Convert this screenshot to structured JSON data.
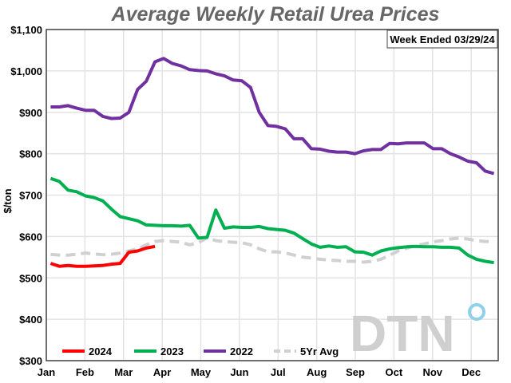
{
  "chart_data": {
    "type": "line",
    "title": "Average Weekly Retail Urea Prices",
    "annotation": "Week Ended 03/29/24",
    "ylabel": "$/ton",
    "xlabel": "",
    "ylim": [
      300,
      1100
    ],
    "yticks": [
      "$300",
      "$400",
      "$500",
      "$600",
      "$700",
      "$800",
      "$900",
      "$1,000",
      "$1,100"
    ],
    "xticks": [
      "Jan",
      "Feb",
      "Mar",
      "Apr",
      "May",
      "Jun",
      "Jul",
      "Aug",
      "Sep",
      "Oct",
      "Nov",
      "Dec"
    ],
    "grid": true,
    "legend_placement": "bottom-left",
    "series": [
      {
        "name": "2024",
        "color": "#ff0000",
        "dashed": false,
        "values": [
          535,
          528,
          530,
          528,
          528,
          529,
          530,
          533,
          535,
          562,
          565,
          572,
          576
        ]
      },
      {
        "name": "2023",
        "color": "#00b050",
        "dashed": false,
        "values": [
          740,
          733,
          712,
          708,
          698,
          694,
          686,
          666,
          648,
          643,
          638,
          628,
          627,
          626,
          626,
          625,
          627,
          596,
          598,
          664,
          620,
          623,
          622,
          622,
          624,
          619,
          617,
          615,
          608,
          595,
          582,
          574,
          577,
          574,
          575,
          563,
          562,
          555,
          565,
          570,
          573,
          575,
          576,
          575,
          575,
          574,
          574,
          572,
          555,
          545,
          540,
          537
        ]
      },
      {
        "name": "2022",
        "color": "#7030a0",
        "dashed": false,
        "values": [
          913,
          913,
          916,
          910,
          905,
          905,
          890,
          885,
          886,
          900,
          955,
          975,
          1022,
          1030,
          1018,
          1012,
          1003,
          1001,
          1000,
          993,
          988,
          978,
          976,
          960,
          900,
          868,
          866,
          860,
          836,
          836,
          812,
          811,
          806,
          804,
          804,
          800,
          807,
          810,
          810,
          825,
          824,
          826,
          826,
          826,
          812,
          812,
          800,
          792,
          782,
          778,
          758,
          752
        ]
      },
      {
        "name": "5Yr Avg",
        "color": "#d0d0d0",
        "dashed": true,
        "values": [
          557,
          555,
          555,
          557,
          560,
          558,
          556,
          557,
          560,
          565,
          570,
          580,
          588,
          590,
          588,
          586,
          580,
          585,
          597,
          590,
          588,
          586,
          585,
          580,
          570,
          563,
          563,
          560,
          555,
          550,
          548,
          545,
          543,
          542,
          540,
          540,
          538,
          540,
          545,
          555,
          565,
          572,
          578,
          582,
          587,
          590,
          594,
          596,
          594,
          590,
          588,
          588
        ]
      }
    ]
  },
  "logo": {
    "text": "DTN",
    "accent": "#8ed1e8"
  }
}
